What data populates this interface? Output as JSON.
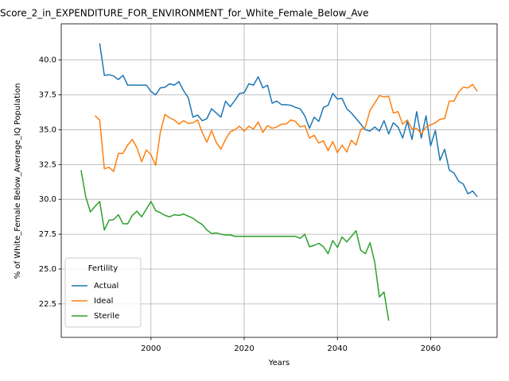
{
  "chart_data": {
    "type": "line",
    "title": "Score_2_in_EXPENDITURE_FOR_ENVIRONMENT_for_White_Female_Below_Ave",
    "xlabel": "Years",
    "ylabel": "% of White_Female Below_Average_IQ Population",
    "x": [
      1985,
      1986,
      1987,
      1988,
      1989,
      1990,
      1991,
      1992,
      1993,
      1994,
      1995,
      1996,
      1997,
      1998,
      1999,
      2000,
      2001,
      2002,
      2003,
      2004,
      2005,
      2006,
      2007,
      2008,
      2009,
      2010,
      2011,
      2012,
      2013,
      2014,
      2015,
      2016,
      2017,
      2018,
      2019,
      2020,
      2021,
      2022,
      2023,
      2024,
      2025,
      2026,
      2027,
      2028,
      2029,
      2030,
      2031,
      2032,
      2033,
      2034,
      2035,
      2036,
      2037,
      2038,
      2039,
      2040,
      2041,
      2042,
      2043,
      2044,
      2045,
      2046,
      2047,
      2048,
      2049,
      2050,
      2051,
      2052,
      2053,
      2054,
      2055,
      2056,
      2057,
      2058,
      2059,
      2060,
      2061,
      2062,
      2063,
      2064,
      2065,
      2066,
      2067,
      2068,
      2069,
      2070
    ],
    "series": [
      {
        "name": "Actual",
        "color": "#1f77b4",
        "values": [
          null,
          null,
          null,
          null,
          41.2,
          38.9,
          38.95,
          38.85,
          38.6,
          38.9,
          38.2,
          38.2,
          38.2,
          38.2,
          38.2,
          37.75,
          37.5,
          38.0,
          38.05,
          38.3,
          38.2,
          38.45,
          37.8,
          37.3,
          35.9,
          36.05,
          35.65,
          35.8,
          36.5,
          36.2,
          35.9,
          37.05,
          36.65,
          37.1,
          37.6,
          37.65,
          38.3,
          38.2,
          38.8,
          38.0,
          38.2,
          36.9,
          37.05,
          36.8,
          36.8,
          36.75,
          36.6,
          36.5,
          36.0,
          35.1,
          35.9,
          35.6,
          36.6,
          36.75,
          37.6,
          37.2,
          37.25,
          36.5,
          36.2,
          35.8,
          35.4,
          35.0,
          34.9,
          35.2,
          34.9,
          35.65,
          34.7,
          35.5,
          35.2,
          34.4,
          35.6,
          34.3,
          36.3,
          34.4,
          36.0,
          33.85,
          34.95,
          32.8,
          33.6,
          32.1,
          31.9,
          31.3,
          31.1,
          30.4,
          30.6,
          30.2
        ]
      },
      {
        "name": "Ideal",
        "color": "#ff7f0e",
        "values": [
          null,
          null,
          null,
          36.0,
          35.7,
          32.2,
          32.3,
          32.0,
          33.3,
          33.3,
          33.9,
          34.3,
          33.7,
          32.7,
          33.55,
          33.2,
          32.45,
          34.8,
          36.1,
          35.85,
          35.7,
          35.4,
          35.65,
          35.45,
          35.5,
          35.7,
          34.8,
          34.1,
          34.95,
          34.1,
          33.6,
          34.3,
          34.85,
          35.0,
          35.25,
          34.9,
          35.25,
          35.05,
          35.55,
          34.8,
          35.3,
          35.1,
          35.2,
          35.4,
          35.4,
          35.7,
          35.6,
          35.2,
          35.3,
          34.4,
          34.6,
          34.05,
          34.2,
          33.5,
          34.15,
          33.35,
          33.9,
          33.4,
          34.25,
          33.9,
          35.0,
          35.2,
          36.4,
          36.9,
          37.45,
          37.35,
          37.4,
          36.2,
          36.3,
          35.4,
          35.7,
          35.05,
          35.1,
          34.7,
          35.2,
          35.35,
          35.5,
          35.75,
          35.8,
          37.05,
          37.05,
          37.7,
          38.05,
          38.0,
          38.25,
          37.75
        ]
      },
      {
        "name": "Sterile",
        "color": "#2ca02c",
        "values": [
          32.1,
          30.2,
          29.1,
          29.5,
          29.85,
          27.8,
          28.5,
          28.55,
          28.9,
          28.25,
          28.25,
          28.85,
          29.15,
          28.75,
          29.3,
          29.85,
          29.2,
          29.05,
          28.85,
          28.75,
          28.9,
          28.85,
          28.95,
          28.8,
          28.65,
          28.4,
          28.2,
          27.8,
          27.55,
          27.6,
          27.5,
          27.45,
          27.45,
          27.35,
          27.35,
          27.35,
          27.35,
          27.35,
          27.35,
          27.35,
          27.35,
          27.35,
          27.35,
          27.35,
          27.35,
          27.35,
          27.35,
          27.2,
          27.5,
          26.6,
          26.7,
          26.85,
          26.6,
          26.1,
          27.05,
          26.55,
          27.3,
          26.95,
          27.35,
          27.75,
          26.35,
          26.1,
          26.9,
          25.5,
          23.0,
          23.35,
          21.3,
          null,
          null,
          null,
          null,
          null,
          null,
          null,
          null,
          null,
          null,
          null,
          null,
          null,
          null,
          null,
          null,
          null,
          null,
          null
        ]
      }
    ],
    "xlim": [
      1980.75,
      2074.25
    ],
    "ylim": [
      20.1,
      42.6
    ],
    "xticks": [
      2000,
      2020,
      2040,
      2060
    ],
    "yticks": [
      22.5,
      {
        "value": 25,
        "label": "25.0"
      },
      27.5,
      {
        "value": 30,
        "label": "30.0"
      },
      32.5,
      {
        "value": 35,
        "label": "35.0"
      },
      37.5,
      {
        "value": 40,
        "label": "40.0"
      }
    ],
    "grid": true,
    "legend_title": "Fertility",
    "legend_loc": "lower left"
  }
}
